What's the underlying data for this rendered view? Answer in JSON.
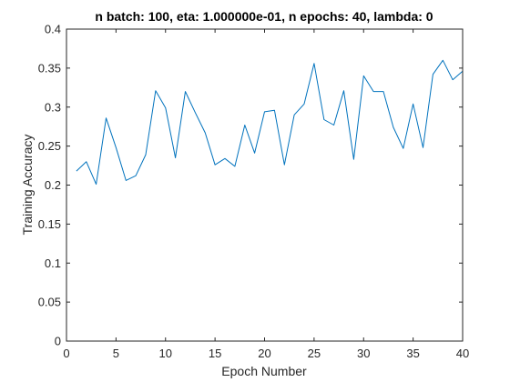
{
  "chart_data": {
    "type": "line",
    "title": "n batch: 100, eta: 1.000000e-01, n epochs: 40, lambda: 0",
    "xlabel": "Epoch Number",
    "ylabel": "Training Accuracy",
    "xlim": [
      0,
      40
    ],
    "ylim": [
      0,
      0.4
    ],
    "xticks": [
      0,
      5,
      10,
      15,
      20,
      25,
      30,
      35,
      40
    ],
    "yticks": [
      0,
      0.05,
      0.1,
      0.15,
      0.2,
      0.25,
      0.3,
      0.35,
      0.4
    ],
    "xtick_labels": [
      "0",
      "5",
      "10",
      "15",
      "20",
      "25",
      "30",
      "35",
      "40"
    ],
    "ytick_labels": [
      "0",
      "0.05",
      "0.1",
      "0.15",
      "0.2",
      "0.25",
      "0.3",
      "0.35",
      "0.4"
    ],
    "grid": false,
    "box": true,
    "line_color": "#0072bd",
    "axis_color": "#262626",
    "series": [
      {
        "x": [
          1,
          2,
          3,
          4,
          5,
          6,
          7,
          8,
          9,
          10,
          11,
          12,
          13,
          14,
          15,
          16,
          17,
          18,
          19,
          20,
          21,
          22,
          23,
          24,
          25,
          26,
          27,
          28,
          29,
          30,
          31,
          32,
          33,
          34,
          35,
          36,
          37,
          38,
          39,
          40
        ],
        "values": [
          0.218,
          0.23,
          0.201,
          0.286,
          0.248,
          0.206,
          0.212,
          0.239,
          0.321,
          0.299,
          0.235,
          0.32,
          0.293,
          0.267,
          0.226,
          0.234,
          0.224,
          0.277,
          0.241,
          0.294,
          0.296,
          0.226,
          0.29,
          0.304,
          0.356,
          0.284,
          0.277,
          0.321,
          0.233,
          0.34,
          0.32,
          0.32,
          0.274,
          0.247,
          0.304,
          0.248,
          0.342,
          0.36,
          0.335,
          0.346
        ]
      }
    ]
  }
}
